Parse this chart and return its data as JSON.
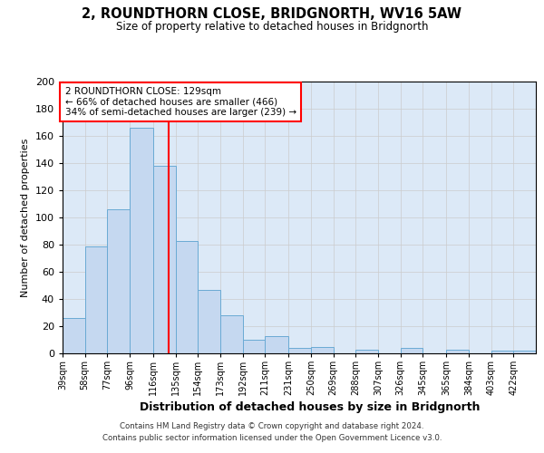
{
  "title": "2, ROUNDTHORN CLOSE, BRIDGNORTH, WV16 5AW",
  "subtitle": "Size of property relative to detached houses in Bridgnorth",
  "xlabel": "Distribution of detached houses by size in Bridgnorth",
  "ylabel": "Number of detached properties",
  "footer_line1": "Contains HM Land Registry data © Crown copyright and database right 2024.",
  "footer_line2": "Contains public sector information licensed under the Open Government Licence v3.0.",
  "bin_labels": [
    "39sqm",
    "58sqm",
    "77sqm",
    "96sqm",
    "116sqm",
    "135sqm",
    "154sqm",
    "173sqm",
    "192sqm",
    "211sqm",
    "231sqm",
    "250sqm",
    "269sqm",
    "288sqm",
    "307sqm",
    "326sqm",
    "345sqm",
    "365sqm",
    "384sqm",
    "403sqm",
    "422sqm"
  ],
  "bin_values": [
    26,
    79,
    106,
    166,
    138,
    83,
    47,
    28,
    10,
    13,
    4,
    5,
    0,
    3,
    0,
    4,
    0,
    3,
    0,
    2,
    2
  ],
  "bar_color": "#c5d8f0",
  "bar_edge_color": "#6aaad4",
  "vline_x": 129,
  "vline_color": "red",
  "bin_edges": [
    39,
    58,
    77,
    96,
    116,
    135,
    154,
    173,
    192,
    211,
    231,
    250,
    269,
    288,
    307,
    326,
    345,
    365,
    384,
    403,
    422,
    441
  ],
  "ylim": [
    0,
    200
  ],
  "annotation_text": "2 ROUNDTHORN CLOSE: 129sqm\n← 66% of detached houses are smaller (466)\n34% of semi-detached houses are larger (239) →",
  "annotation_box_color": "white",
  "annotation_box_edge_color": "red",
  "grid_color": "#cccccc",
  "background_color": "#dce9f7"
}
